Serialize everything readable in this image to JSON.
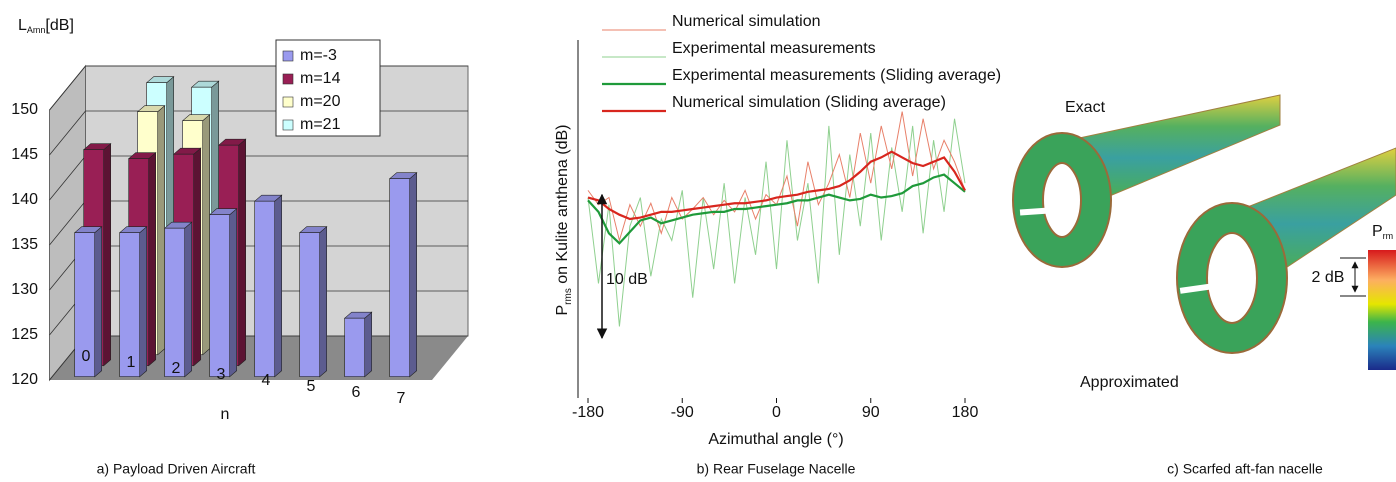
{
  "chart_data": [
    {
      "type": "bar3d",
      "caption": "a) Payload Driven Aircraft",
      "ylabel": {
        "text": "L",
        "sub": "Amn",
        "unit": "[dB]"
      },
      "xlabel": "n",
      "categories": [
        "0",
        "1",
        "2",
        "3",
        "4",
        "5",
        "6",
        "7"
      ],
      "series": [
        {
          "name": "m=-3",
          "color": "#9a9aee",
          "values": [
            136,
            136,
            136.5,
            138,
            139.5,
            136,
            126.5,
            142
          ]
        },
        {
          "name": "m=14",
          "color": "#991f55",
          "values": [
            144,
            143,
            143.5,
            144.5,
            null,
            null,
            null,
            null
          ]
        },
        {
          "name": "m=20",
          "color": "#ffffcc",
          "values": [
            null,
            147,
            146,
            null,
            null,
            null,
            null,
            null
          ]
        },
        {
          "name": "m=21",
          "color": "#ccffff",
          "values": [
            null,
            149,
            148.5,
            null,
            null,
            null,
            null,
            null
          ]
        }
      ],
      "ylim": [
        120,
        150
      ],
      "yticks": [
        120,
        125,
        130,
        135,
        140,
        145,
        150
      ],
      "grid": true
    },
    {
      "type": "line",
      "caption": "b) Rear Fuselage Nacelle",
      "ylabel": {
        "text": "P",
        "sub": "rms",
        "rest": " on Kulite anthena (dB)"
      },
      "xlabel": "Azimuthal angle (°)",
      "x": [
        -180,
        -170,
        -160,
        -150,
        -140,
        -130,
        -120,
        -110,
        -100,
        -90,
        -80,
        -70,
        -60,
        -50,
        -40,
        -30,
        -20,
        -10,
        0,
        10,
        20,
        30,
        40,
        50,
        60,
        70,
        80,
        90,
        100,
        110,
        120,
        130,
        140,
        150,
        160,
        170,
        180
      ],
      "series": [
        {
          "name": "Numerical simulation",
          "color": "#e8806a",
          "width": 1,
          "values": [
            14.5,
            13.5,
            14.0,
            11.0,
            13.5,
            12.0,
            13.6,
            11.5,
            14.0,
            12.5,
            13.2,
            14.0,
            12.8,
            13.8,
            13.0,
            14.5,
            12.5,
            14.2,
            13.5,
            15.5,
            12.0,
            16.5,
            13.5,
            15.0,
            17.0,
            14.0,
            18.5,
            15.0,
            19.0,
            16.0,
            20.0,
            15.5,
            19.5,
            16.0,
            18.0,
            16.5,
            14.5
          ]
        },
        {
          "name": "Experimental measurements",
          "color": "#8fd08f",
          "width": 1,
          "values": [
            14.0,
            8.0,
            13.5,
            5.0,
            12.0,
            14.0,
            8.5,
            12.5,
            11.0,
            14.5,
            7.0,
            14.0,
            9.0,
            15.0,
            8.0,
            14.0,
            10.0,
            16.5,
            9.0,
            18.0,
            11.0,
            15.0,
            8.0,
            19.0,
            10.0,
            17.0,
            12.0,
            18.5,
            11.0,
            17.5,
            13.0,
            19.0,
            11.5,
            18.0,
            13.0,
            19.5,
            15.0
          ]
        },
        {
          "name": "Experimental measurements (Sliding average)",
          "color": "#1f9a3a",
          "width": 2.2,
          "values": [
            13.8,
            13.0,
            11.5,
            10.8,
            11.6,
            12.4,
            12.6,
            12.2,
            12.4,
            12.6,
            12.8,
            12.9,
            13.0,
            13.0,
            13.2,
            13.2,
            13.3,
            13.4,
            13.5,
            13.6,
            13.8,
            13.8,
            14.0,
            14.2,
            14.0,
            13.8,
            13.9,
            14.2,
            14.0,
            14.1,
            14.3,
            14.8,
            15.0,
            15.4,
            15.6,
            15.0,
            14.4
          ]
        },
        {
          "name": "Numerical simulation (Sliding average)",
          "color": "#d8261e",
          "width": 2.2,
          "values": [
            14.0,
            13.8,
            13.2,
            12.8,
            12.5,
            12.6,
            12.8,
            13.0,
            13.0,
            13.1,
            13.2,
            13.3,
            13.4,
            13.5,
            13.6,
            13.6,
            13.7,
            13.8,
            14.0,
            14.1,
            14.2,
            14.4,
            14.5,
            14.6,
            14.8,
            15.2,
            15.8,
            16.5,
            16.8,
            17.2,
            16.8,
            16.4,
            16.2,
            16.5,
            16.8,
            15.8,
            14.5
          ]
        }
      ],
      "xlim": [
        -180,
        180
      ],
      "xticks": [
        -180,
        -90,
        0,
        90,
        180
      ],
      "ylim": [
        0,
        25
      ],
      "scale_bar": {
        "label": "10 dB",
        "value": 10
      }
    }
  ],
  "panel_c": {
    "caption": "c) Scarfed aft-fan nacelle",
    "exact": "Exact",
    "approximated": "Approximated",
    "colorbar": {
      "title": "P",
      "sub": "rm",
      "scale_label": "2 dB"
    }
  }
}
